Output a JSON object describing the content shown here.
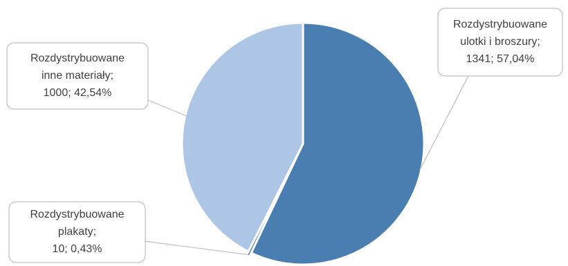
{
  "chart_data": {
    "type": "pie",
    "title": "",
    "slices": [
      {
        "category": "Rozdystrybuowane ulotki i broszury",
        "value": 1341,
        "percent_label": "57,04%",
        "color": "#4a7eb0",
        "label_lines": [
          "Rozdystrybuowane",
          "ulotki i broszury;",
          "1341; 57,04%"
        ]
      },
      {
        "category": "Rozdystrybuowane plakaty",
        "value": 10,
        "percent_label": "0,43%",
        "color": "#4a7eb0",
        "label_lines": [
          "Rozdystrybuowane",
          "plakaty;",
          "10; 0,43%"
        ]
      },
      {
        "category": "Rozdystrybuowane inne materiały",
        "value": 1000,
        "percent_label": "42,54%",
        "color": "#adc6e5",
        "label_lines": [
          "Rozdystrybuowane",
          "inne materiały;",
          "1000; 42,54%"
        ]
      }
    ],
    "start_angle_deg": 0,
    "direction": "clockwise",
    "exploded_slice": "Rozdystrybuowane plakaty",
    "legend": "none",
    "label_style": "callout"
  }
}
